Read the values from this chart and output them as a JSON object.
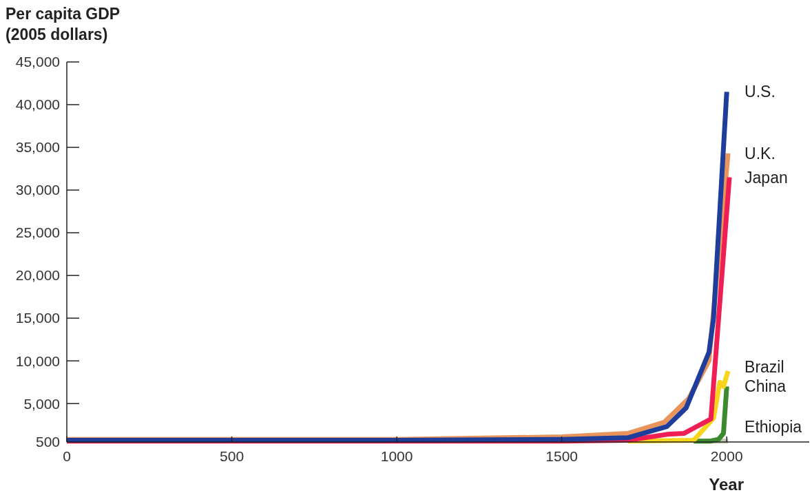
{
  "chart_data": {
    "type": "line",
    "ylabel": "Per capita GDP\n(2005 dollars)",
    "xlabel": "Year",
    "xlim": [
      0,
      2250
    ],
    "xticks": [
      0,
      500,
      1000,
      1500,
      2000
    ],
    "ylim": [
      500,
      45000
    ],
    "yticks": [
      {
        "value": 500,
        "label": "500"
      },
      {
        "value": 5000,
        "label": "5,000"
      },
      {
        "value": 10000,
        "label": "10,000"
      },
      {
        "value": 15000,
        "label": "15,000"
      },
      {
        "value": 20000,
        "label": "20,000"
      },
      {
        "value": 25000,
        "label": "25,000"
      },
      {
        "value": 30000,
        "label": "30,000"
      },
      {
        "value": 35000,
        "label": "35,000"
      },
      {
        "value": 40000,
        "label": "40,000"
      },
      {
        "value": 45000,
        "label": "45,000"
      }
    ],
    "grid": false,
    "line_style": "solid",
    "series": [
      {
        "name": "Ethiopia",
        "color": "#c5c8b0",
        "x": [
          1900,
          2004
        ],
        "values": [
          600,
          600
        ]
      },
      {
        "name": "China",
        "color": "#3b8a2e",
        "x": [
          1900,
          1950,
          1975,
          1990,
          2000
        ],
        "values": [
          600,
          600,
          800,
          1500,
          7000
        ]
      },
      {
        "name": "Brazil",
        "color": "#f7d51c",
        "x": [
          1700,
          1900,
          1960,
          1979,
          1990,
          2004
        ],
        "values": [
          600,
          700,
          3300,
          7500,
          7000,
          8800
        ]
      },
      {
        "name": "U.K.",
        "color": "#e8945a",
        "x": [
          0,
          1000,
          1500,
          1700,
          1810,
          1885,
          1946,
          2004
        ],
        "values": [
          800,
          800,
          1100,
          1500,
          2800,
          5600,
          10000,
          34300
        ]
      },
      {
        "name": "Japan",
        "color": "#ef1e55",
        "x": [
          0,
          1500,
          1700,
          1820,
          1870,
          1952,
          2008
        ],
        "values": [
          600,
          600,
          700,
          1400,
          1500,
          3200,
          31500
        ]
      },
      {
        "name": "U.S.",
        "color": "#1f3e9c",
        "x": [
          0,
          1000,
          1500,
          1700,
          1818,
          1877,
          1946,
          1960,
          2000
        ],
        "values": [
          700,
          700,
          800,
          1000,
          2300,
          4500,
          11000,
          15000,
          41500
        ]
      }
    ]
  }
}
